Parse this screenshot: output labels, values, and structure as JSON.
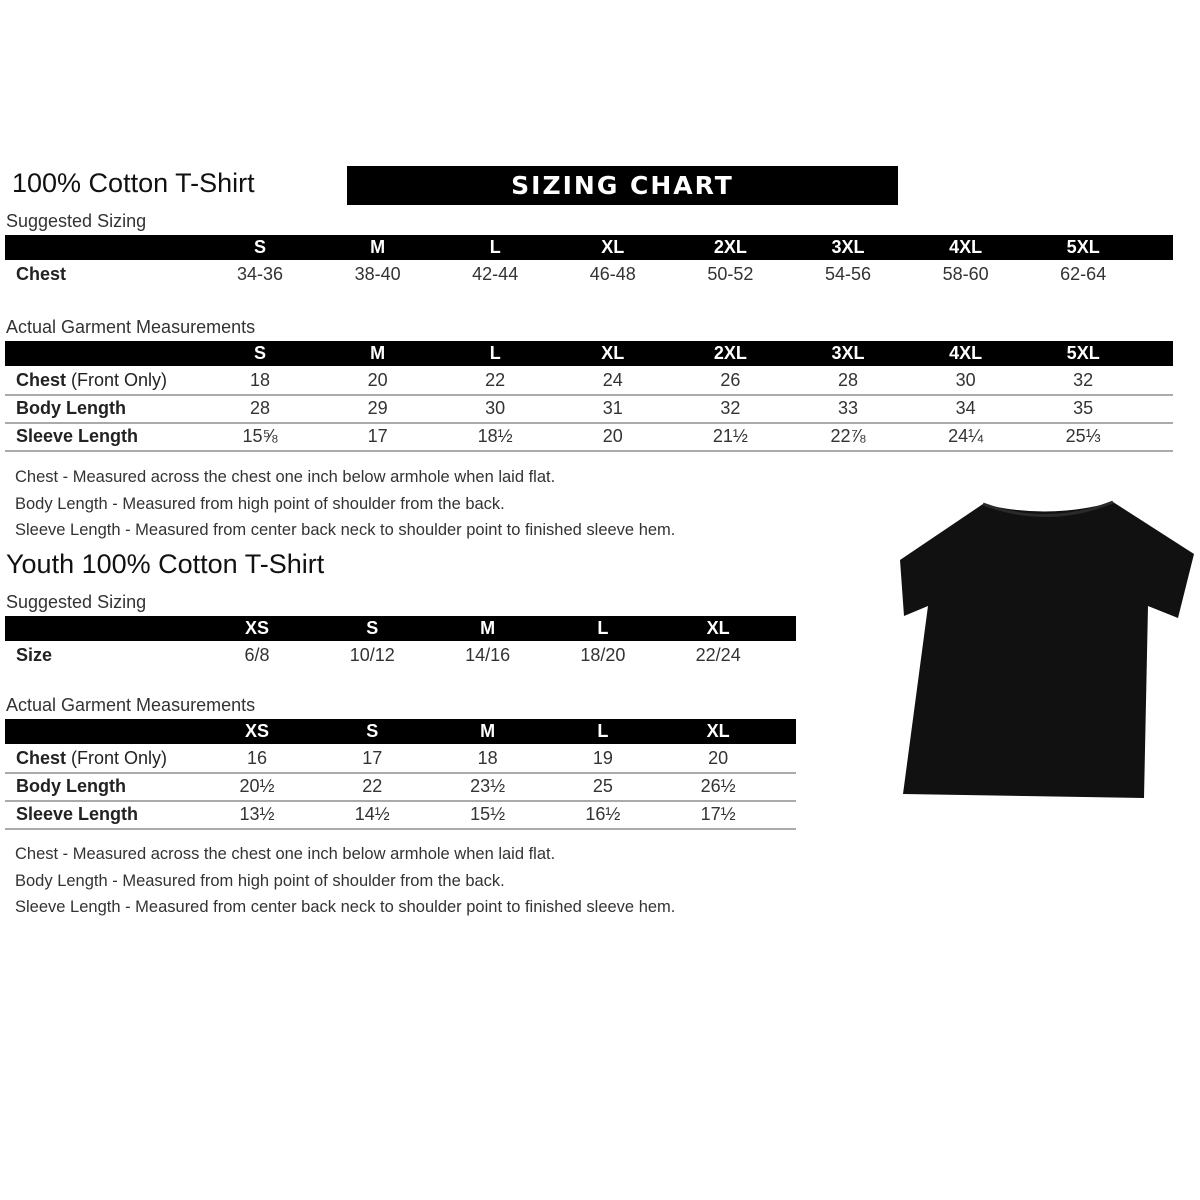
{
  "adult": {
    "title": "100% Cotton T-Shirt",
    "banner": "SIZING CHART",
    "suggested_label": "Suggested Sizing",
    "sizes": [
      "S",
      "M",
      "L",
      "XL",
      "2XL",
      "3XL",
      "4XL",
      "5XL"
    ],
    "suggested_rows": [
      {
        "label": "Chest",
        "values": [
          "34-36",
          "38-40",
          "42-44",
          "46-48",
          "50-52",
          "54-56",
          "58-60",
          "62-64"
        ]
      }
    ],
    "actual_label": "Actual Garment Measurements",
    "actual_rows": [
      {
        "label": "Chest",
        "label_extra": "(Front Only)",
        "values": [
          "18",
          "20",
          "22",
          "24",
          "26",
          "28",
          "30",
          "32"
        ]
      },
      {
        "label": "Body Length",
        "label_extra": "",
        "values": [
          "28",
          "29",
          "30",
          "31",
          "32",
          "33",
          "34",
          "35"
        ]
      },
      {
        "label": "Sleeve Length",
        "label_extra": "",
        "values": [
          "15⅝",
          "17",
          "18½",
          "20",
          "21½",
          "22⅞",
          "24¼",
          "25⅓"
        ]
      }
    ],
    "notes": [
      "Chest - Measured across the chest one inch below armhole when laid flat.",
      "Body Length - Measured from high point of shoulder from the back.",
      "Sleeve Length - Measured from center back neck to shoulder point to finished sleeve hem."
    ]
  },
  "youth": {
    "title": "Youth 100% Cotton T-Shirt",
    "suggested_label": "Suggested Sizing",
    "sizes": [
      "XS",
      "S",
      "M",
      "L",
      "XL"
    ],
    "suggested_rows": [
      {
        "label": "Size",
        "values": [
          "6/8",
          "10/12",
          "14/16",
          "18/20",
          "22/24"
        ]
      }
    ],
    "actual_label": "Actual Garment Measurements",
    "actual_rows": [
      {
        "label": "Chest",
        "label_extra": "(Front Only)",
        "values": [
          "16",
          "17",
          "18",
          "19",
          "20"
        ]
      },
      {
        "label": "Body Length",
        "label_extra": "",
        "values": [
          "20½",
          "22",
          "23½",
          "25",
          "26½"
        ]
      },
      {
        "label": "Sleeve Length",
        "label_extra": "",
        "values": [
          "13½",
          "14½",
          "15½",
          "16½",
          "17½"
        ]
      }
    ],
    "notes": [
      "Chest - Measured across the chest one inch below armhole when laid flat.",
      "Body Length - Measured from high point of shoulder from the back.",
      "Sleeve Length - Measured from center back neck to shoulder point to finished sleeve hem."
    ]
  },
  "image": {
    "icon": "tshirt-icon",
    "color": "#111111"
  }
}
